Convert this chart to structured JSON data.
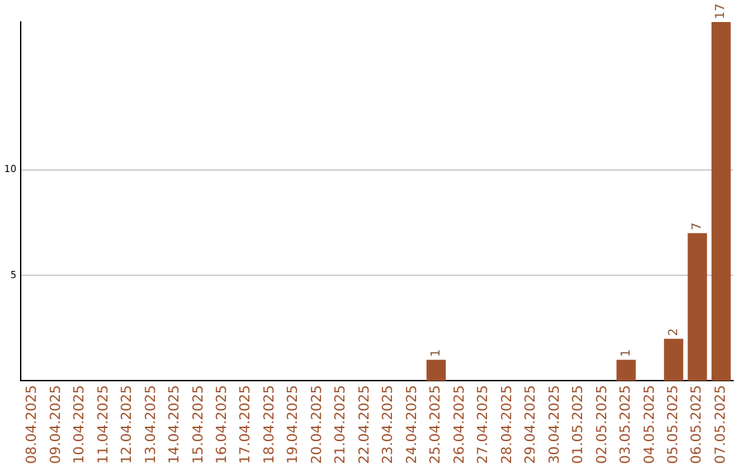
{
  "chart_data": {
    "type": "bar",
    "categories": [
      "08.04.2025",
      "09.04.2025",
      "10.04.2025",
      "11.04.2025",
      "12.04.2025",
      "13.04.2025",
      "14.04.2025",
      "15.04.2025",
      "16.04.2025",
      "17.04.2025",
      "18.04.2025",
      "19.04.2025",
      "20.04.2025",
      "21.04.2025",
      "22.04.2025",
      "23.04.2025",
      "24.04.2025",
      "25.04.2025",
      "26.04.2025",
      "27.04.2025",
      "28.04.2025",
      "29.04.2025",
      "30.04.2025",
      "01.05.2025",
      "02.05.2025",
      "03.05.2025",
      "04.05.2025",
      "05.05.2025",
      "06.05.2025",
      "07.05.2025"
    ],
    "values": [
      0,
      0,
      0,
      0,
      0,
      0,
      0,
      0,
      0,
      0,
      0,
      0,
      0,
      0,
      0,
      0,
      0,
      1,
      0,
      0,
      0,
      0,
      0,
      0,
      0,
      1,
      0,
      2,
      7,
      17
    ],
    "value_labels": [
      null,
      null,
      null,
      null,
      null,
      null,
      null,
      null,
      null,
      null,
      null,
      null,
      null,
      null,
      null,
      null,
      null,
      "1",
      null,
      null,
      null,
      null,
      null,
      null,
      null,
      "1",
      null,
      "2",
      "7",
      "17"
    ],
    "color": "#a0522d",
    "ylim": [
      0,
      17
    ],
    "yticks": [
      5,
      10
    ],
    "grid": "y",
    "legend": false
  }
}
